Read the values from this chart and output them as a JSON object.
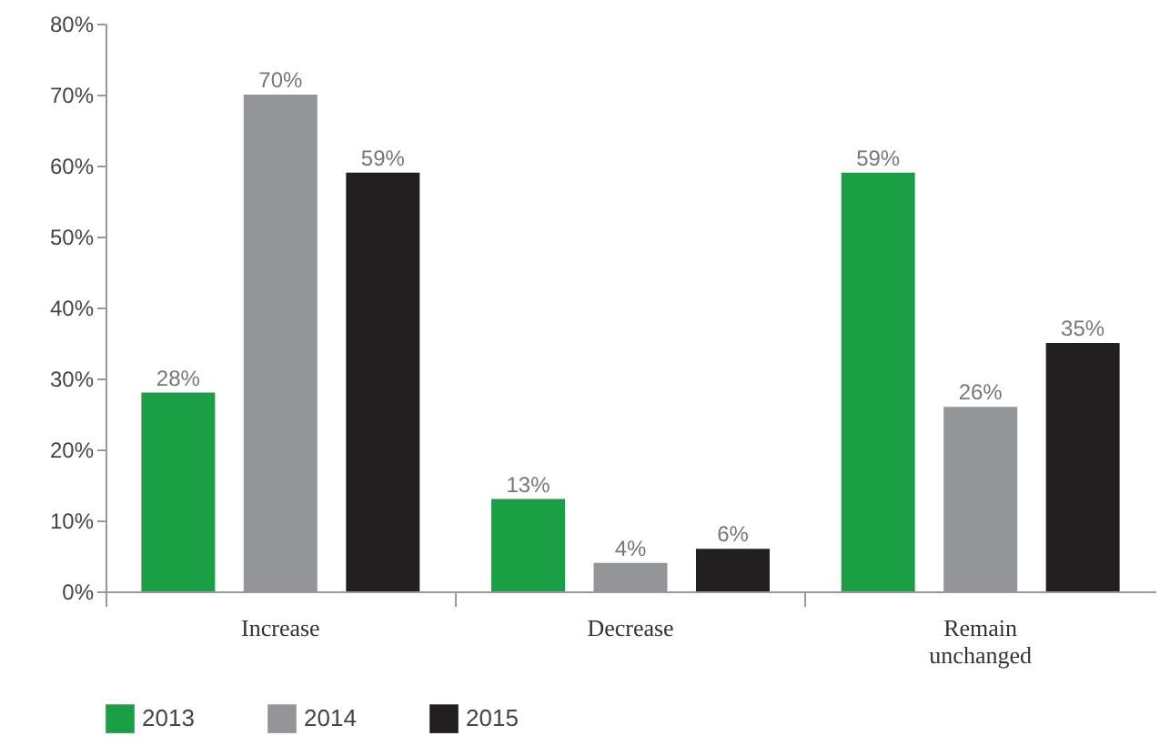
{
  "chart_data": {
    "type": "bar",
    "categories": [
      "Increase",
      "Decrease",
      "Remain unchanged"
    ],
    "series": [
      {
        "name": "2013",
        "color": "#1a9e46",
        "values": [
          28,
          13,
          59
        ],
        "value_labels": [
          "28%",
          "13%",
          "59%"
        ]
      },
      {
        "name": "2014",
        "color": "#939598",
        "values": [
          70,
          4,
          26
        ],
        "value_labels": [
          "70%",
          "4%",
          "26%"
        ]
      },
      {
        "name": "2015",
        "color": "#231f20",
        "values": [
          59,
          6,
          35
        ],
        "value_labels": [
          "59%",
          "6%",
          "35%"
        ]
      }
    ],
    "ylim": [
      0,
      80
    ],
    "yticks": [
      {
        "value": 0,
        "label": "0%"
      },
      {
        "value": 10,
        "label": "10%"
      },
      {
        "value": 20,
        "label": "20%"
      },
      {
        "value": 30,
        "label": "30%"
      },
      {
        "value": 40,
        "label": "40%"
      },
      {
        "value": 50,
        "label": "50%"
      },
      {
        "value": 60,
        "label": "60%"
      },
      {
        "value": 70,
        "label": "70%"
      },
      {
        "value": 80,
        "label": "80%"
      }
    ],
    "grid": false,
    "legend": "bottom left"
  }
}
